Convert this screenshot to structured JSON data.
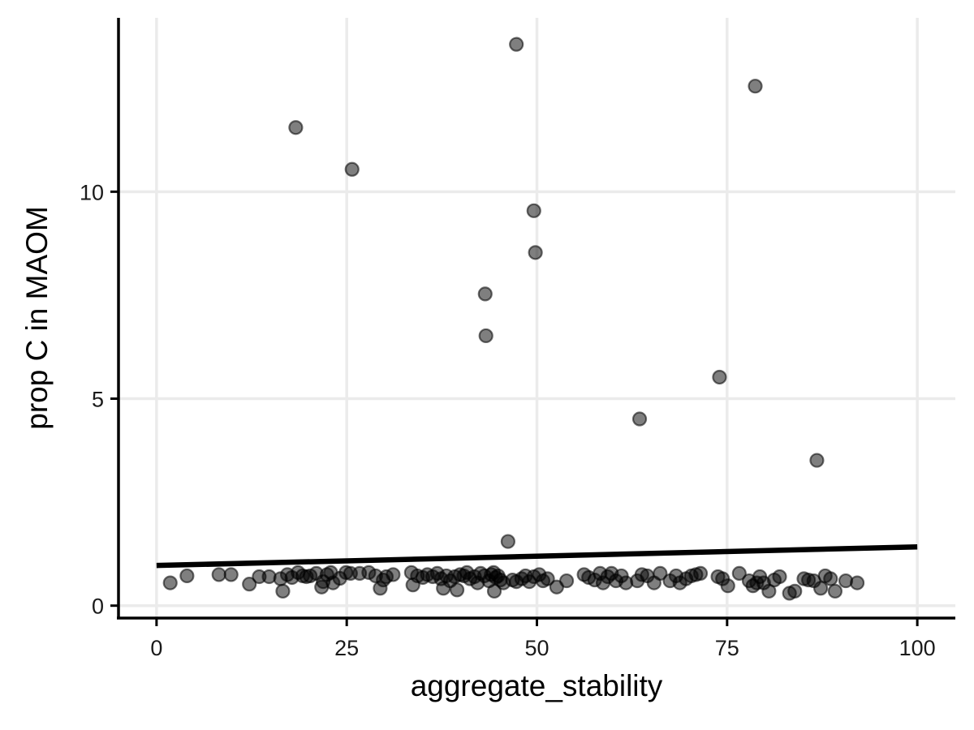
{
  "chart_data": {
    "type": "scatter",
    "xlabel": "aggregate_stability",
    "ylabel": "prop C in MAOM",
    "xlim": [
      -5,
      105
    ],
    "ylim": [
      -0.3,
      14.2
    ],
    "x_ticks": [
      0,
      25,
      50,
      75,
      100
    ],
    "x_tick_labels": [
      "0",
      "25",
      "50",
      "75",
      "100"
    ],
    "y_ticks": [
      0,
      5,
      10
    ],
    "y_tick_labels": [
      "0",
      "5",
      "10"
    ],
    "grid": true,
    "point_color": "#000000",
    "point_alpha": 0.5,
    "fit_line": {
      "x": [
        0,
        100
      ],
      "y": [
        0.97,
        1.42
      ]
    },
    "points": [
      [
        47.3,
        13.56
      ],
      [
        78.7,
        12.55
      ],
      [
        18.3,
        11.55
      ],
      [
        25.7,
        10.54
      ],
      [
        49.6,
        9.54
      ],
      [
        49.8,
        8.53
      ],
      [
        43.2,
        7.53
      ],
      [
        43.3,
        6.52
      ],
      [
        74.0,
        5.52
      ],
      [
        63.5,
        4.51
      ],
      [
        86.8,
        3.51
      ],
      [
        46.2,
        1.55
      ],
      [
        1.8,
        0.55
      ],
      [
        4.0,
        0.72
      ],
      [
        8.2,
        0.75
      ],
      [
        9.8,
        0.75
      ],
      [
        12.2,
        0.52
      ],
      [
        13.5,
        0.7
      ],
      [
        14.8,
        0.7
      ],
      [
        16.3,
        0.65
      ],
      [
        16.6,
        0.35
      ],
      [
        17.2,
        0.75
      ],
      [
        17.8,
        0.68
      ],
      [
        18.6,
        0.8
      ],
      [
        19.2,
        0.72
      ],
      [
        19.7,
        0.7
      ],
      [
        20.2,
        0.72
      ],
      [
        21.0,
        0.78
      ],
      [
        21.7,
        0.45
      ],
      [
        21.9,
        0.58
      ],
      [
        22.4,
        0.75
      ],
      [
        22.9,
        0.8
      ],
      [
        23.2,
        0.55
      ],
      [
        24.1,
        0.66
      ],
      [
        24.9,
        0.8
      ],
      [
        25.5,
        0.78
      ],
      [
        26.7,
        0.78
      ],
      [
        27.9,
        0.8
      ],
      [
        28.8,
        0.72
      ],
      [
        29.4,
        0.42
      ],
      [
        29.8,
        0.62
      ],
      [
        30.2,
        0.7
      ],
      [
        31.1,
        0.75
      ],
      [
        33.5,
        0.8
      ],
      [
        33.7,
        0.5
      ],
      [
        34.3,
        0.72
      ],
      [
        35.0,
        0.68
      ],
      [
        35.6,
        0.75
      ],
      [
        36.3,
        0.7
      ],
      [
        36.9,
        0.78
      ],
      [
        37.4,
        0.65
      ],
      [
        37.7,
        0.42
      ],
      [
        38.1,
        0.72
      ],
      [
        38.6,
        0.6
      ],
      [
        39.2,
        0.7
      ],
      [
        39.5,
        0.38
      ],
      [
        39.9,
        0.75
      ],
      [
        40.4,
        0.72
      ],
      [
        40.8,
        0.8
      ],
      [
        41.2,
        0.65
      ],
      [
        41.8,
        0.7
      ],
      [
        42.2,
        0.55
      ],
      [
        42.6,
        0.78
      ],
      [
        43.1,
        0.72
      ],
      [
        43.7,
        0.6
      ],
      [
        44.0,
        0.75
      ],
      [
        44.3,
        0.8
      ],
      [
        44.4,
        0.35
      ],
      [
        44.6,
        0.68
      ],
      [
        44.9,
        0.72
      ],
      [
        45.2,
        0.62
      ],
      [
        45.6,
        0.55
      ],
      [
        46.8,
        0.62
      ],
      [
        47.3,
        0.58
      ],
      [
        48.0,
        0.65
      ],
      [
        48.5,
        0.72
      ],
      [
        49.0,
        0.58
      ],
      [
        49.6,
        0.7
      ],
      [
        50.3,
        0.75
      ],
      [
        50.8,
        0.6
      ],
      [
        51.4,
        0.65
      ],
      [
        52.6,
        0.45
      ],
      [
        53.9,
        0.6
      ],
      [
        56.2,
        0.75
      ],
      [
        56.8,
        0.68
      ],
      [
        57.6,
        0.62
      ],
      [
        58.3,
        0.78
      ],
      [
        58.7,
        0.55
      ],
      [
        59.3,
        0.7
      ],
      [
        59.8,
        0.78
      ],
      [
        60.4,
        0.6
      ],
      [
        61.1,
        0.72
      ],
      [
        61.7,
        0.55
      ],
      [
        63.2,
        0.6
      ],
      [
        63.8,
        0.75
      ],
      [
        64.5,
        0.72
      ],
      [
        65.4,
        0.55
      ],
      [
        66.2,
        0.78
      ],
      [
        67.5,
        0.6
      ],
      [
        68.3,
        0.72
      ],
      [
        68.8,
        0.55
      ],
      [
        69.6,
        0.65
      ],
      [
        70.3,
        0.72
      ],
      [
        70.9,
        0.75
      ],
      [
        71.5,
        0.78
      ],
      [
        73.8,
        0.7
      ],
      [
        74.4,
        0.65
      ],
      [
        75.1,
        0.48
      ],
      [
        76.6,
        0.78
      ],
      [
        77.9,
        0.6
      ],
      [
        78.4,
        0.48
      ],
      [
        78.9,
        0.55
      ],
      [
        79.3,
        0.7
      ],
      [
        79.8,
        0.55
      ],
      [
        80.5,
        0.35
      ],
      [
        81.2,
        0.62
      ],
      [
        81.9,
        0.7
      ],
      [
        83.2,
        0.3
      ],
      [
        83.9,
        0.35
      ],
      [
        85.1,
        0.65
      ],
      [
        85.7,
        0.62
      ],
      [
        86.4,
        0.6
      ],
      [
        87.3,
        0.42
      ],
      [
        87.9,
        0.72
      ],
      [
        88.6,
        0.65
      ],
      [
        89.2,
        0.35
      ],
      [
        90.6,
        0.6
      ],
      [
        92.1,
        0.55
      ]
    ]
  }
}
